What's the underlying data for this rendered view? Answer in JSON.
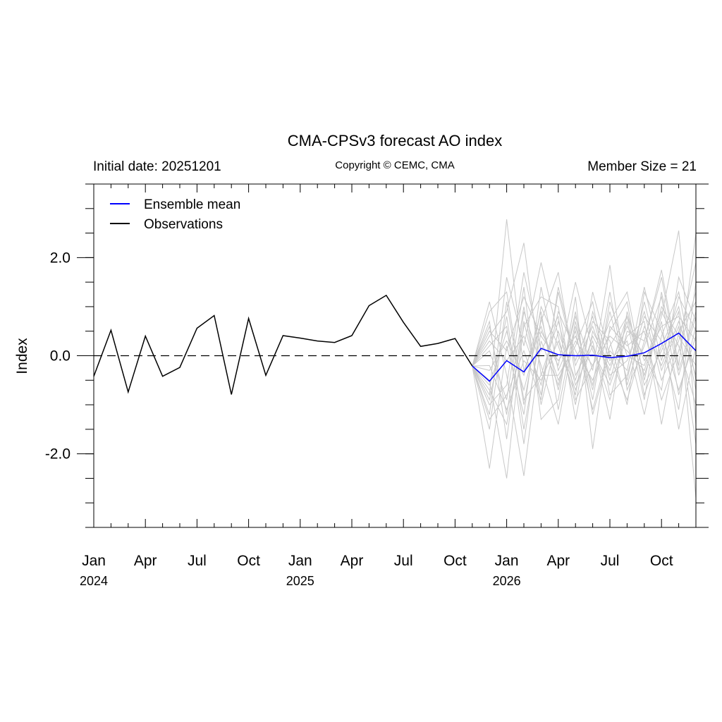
{
  "chart_data": {
    "type": "line",
    "title": "CMA-CPSv3 forecast AO index",
    "subtitle_left": "Initial date: 20251201",
    "subtitle_center": "Copyright © CEMC, CMA",
    "subtitle_right": "Member Size = 21",
    "ylabel": "Index",
    "ylim": [
      -3.5,
      3.5
    ],
    "yticks": [
      -2.0,
      0.0,
      2.0
    ],
    "ytick_labels": [
      "-2.0",
      "0.0",
      "2.0"
    ],
    "xticks": [
      {
        "month": 0,
        "label": "Jan",
        "year": "2024"
      },
      {
        "month": 3,
        "label": "Apr",
        "year": ""
      },
      {
        "month": 6,
        "label": "Jul",
        "year": ""
      },
      {
        "month": 9,
        "label": "Oct",
        "year": ""
      },
      {
        "month": 12,
        "label": "Jan",
        "year": "2025"
      },
      {
        "month": 15,
        "label": "Apr",
        "year": ""
      },
      {
        "month": 18,
        "label": "Jul",
        "year": ""
      },
      {
        "month": 21,
        "label": "Oct",
        "year": ""
      },
      {
        "month": 24,
        "label": "Jan",
        "year": "2026"
      },
      {
        "month": 27,
        "label": "Apr",
        "year": ""
      },
      {
        "month": 30,
        "label": "Jul",
        "year": ""
      },
      {
        "month": 33,
        "label": "Oct",
        "year": ""
      }
    ],
    "x_start": "2024-01",
    "x_end": "2026-12",
    "zero_line": true,
    "legend": {
      "position": "top-left",
      "entries": [
        {
          "name": "Ensemble mean",
          "color": "#0000ff"
        },
        {
          "name": "Observations",
          "color": "#000000"
        }
      ]
    },
    "series": [
      {
        "name": "Observations",
        "color": "#000000",
        "x": [
          "2024-01",
          "2024-02",
          "2024-03",
          "2024-04",
          "2024-05",
          "2024-06",
          "2024-07",
          "2024-08",
          "2024-09",
          "2024-10",
          "2024-11",
          "2024-12",
          "2025-01",
          "2025-02",
          "2025-03",
          "2025-04",
          "2025-05",
          "2025-06",
          "2025-07",
          "2025-08",
          "2025-09",
          "2025-10",
          "2025-11"
        ],
        "values": [
          -0.42,
          0.52,
          -0.74,
          0.4,
          -0.42,
          -0.24,
          0.56,
          0.82,
          -0.79,
          0.76,
          -0.4,
          0.41,
          0.36,
          0.3,
          0.27,
          0.41,
          1.02,
          1.23,
          0.68,
          0.19,
          0.25,
          0.35,
          -0.21
        ]
      },
      {
        "name": "Ensemble mean",
        "color": "#0000ff",
        "x": [
          "2025-11",
          "2025-12",
          "2026-01",
          "2026-02",
          "2026-03",
          "2026-04",
          "2026-05",
          "2026-06",
          "2026-07",
          "2026-08",
          "2026-09",
          "2026-10",
          "2026-11",
          "2026-12"
        ],
        "values": [
          -0.21,
          -0.52,
          -0.1,
          -0.33,
          0.15,
          0.02,
          0.0,
          0.01,
          -0.04,
          -0.01,
          0.06,
          0.25,
          0.46,
          0.1
        ]
      }
    ],
    "members": {
      "color": "#c8c8c8",
      "x": [
        "2025-11",
        "2025-12",
        "2026-01",
        "2026-02",
        "2026-03",
        "2026-04",
        "2026-05",
        "2026-06",
        "2026-07",
        "2026-08",
        "2026-09",
        "2026-10",
        "2026-11",
        "2026-12"
      ],
      "values": [
        [
          -0.21,
          -0.8,
          2.78,
          -0.3,
          0.6,
          -0.5,
          0.3,
          -0.2,
          0.4,
          0.1,
          -0.3,
          0.8,
          2.55,
          -1.4
        ],
        [
          -0.21,
          0.4,
          0.9,
          2.3,
          -0.4,
          0.7,
          -0.6,
          0.2,
          -0.9,
          0.5,
          0.3,
          1.75,
          -0.2,
          2.5
        ],
        [
          -0.21,
          -2.3,
          0.2,
          -1.2,
          1.4,
          -0.3,
          0.5,
          -1.1,
          0.2,
          0.8,
          -0.6,
          0.1,
          0.9,
          -2.9
        ],
        [
          -0.21,
          -0.5,
          -2.5,
          0.7,
          -0.8,
          1.3,
          -0.2,
          0.6,
          -0.4,
          -0.1,
          0.9,
          -0.5,
          0.3,
          1.9
        ],
        [
          -0.21,
          1.1,
          -0.4,
          -2.45,
          0.3,
          -0.6,
          0.8,
          -0.3,
          1.85,
          -0.7,
          0.2,
          1.2,
          -0.8,
          0.6
        ],
        [
          -0.21,
          -1.2,
          1.6,
          0.2,
          1.9,
          0.4,
          -1.0,
          0.9,
          -0.1,
          0.3,
          -1.2,
          0.4,
          1.3,
          -0.5
        ],
        [
          -0.21,
          0.1,
          -0.9,
          1.4,
          -1.3,
          -0.9,
          1.2,
          -1.9,
          0.6,
          0.2,
          0.5,
          -0.9,
          0.1,
          1.3
        ],
        [
          -0.21,
          -0.6,
          0.5,
          -0.7,
          0.7,
          1.7,
          -0.4,
          0.3,
          -1.3,
          0.9,
          -0.4,
          0.7,
          -1.5,
          0.2
        ],
        [
          -0.21,
          0.7,
          -1.7,
          0.9,
          -0.2,
          -1.4,
          0.6,
          -0.7,
          0.9,
          -0.5,
          1.1,
          -0.3,
          0.6,
          -1.8
        ],
        [
          -0.21,
          -1.5,
          1.1,
          -1.0,
          1.0,
          0.2,
          -0.8,
          1.3,
          0.0,
          -0.9,
          0.3,
          1.6,
          -0.3,
          0.9
        ],
        [
          -0.21,
          0.3,
          -0.1,
          0.4,
          -0.6,
          0.9,
          0.1,
          -0.5,
          0.5,
          1.1,
          -0.8,
          0.2,
          1.0,
          -0.7
        ],
        [
          -0.21,
          -0.9,
          0.8,
          -1.5,
          0.5,
          -0.2,
          1.5,
          0.1,
          -0.6,
          0.4,
          0.7,
          -1.4,
          0.5,
          1.1
        ],
        [
          -0.21,
          0.6,
          -1.2,
          1.0,
          -1.0,
          0.5,
          -0.5,
          0.7,
          0.3,
          -1.0,
          1.3,
          0.5,
          -0.7,
          0.4
        ],
        [
          -0.21,
          -0.3,
          0.3,
          -0.4,
          0.9,
          -1.1,
          0.7,
          -0.9,
          1.1,
          0.0,
          -0.2,
          0.9,
          0.2,
          -1.0
        ],
        [
          -0.21,
          -1.0,
          -0.6,
          1.7,
          0.1,
          0.8,
          -1.3,
          0.5,
          -0.2,
          0.6,
          0.0,
          -0.7,
          1.6,
          0.7
        ],
        [
          -0.21,
          0.9,
          1.3,
          -0.9,
          -0.4,
          -0.4,
          0.2,
          1.1,
          -0.8,
          -0.4,
          0.8,
          0.3,
          -1.1,
          1.5
        ],
        [
          -0.21,
          -0.7,
          -1.4,
          0.6,
          1.2,
          1.0,
          -0.9,
          -0.2,
          0.7,
          1.3,
          -0.5,
          1.0,
          0.4,
          -0.2
        ],
        [
          -0.21,
          0.2,
          0.6,
          -1.8,
          0.8,
          -0.7,
          0.9,
          -1.2,
          0.1,
          -0.3,
          1.4,
          -0.1,
          1.2,
          0.5
        ],
        [
          -0.21,
          -1.3,
          -0.8,
          0.1,
          -0.9,
          1.4,
          -0.1,
          0.8,
          -0.5,
          0.7,
          -0.9,
          1.3,
          -0.4,
          0.8
        ],
        [
          -0.21,
          0.5,
          0.1,
          1.2,
          0.4,
          -0.1,
          0.4,
          -0.6,
          1.3,
          -0.6,
          0.6,
          -0.2,
          0.7,
          -0.4
        ],
        [
          -0.21,
          -0.2,
          -1.1,
          -0.1,
          -0.5,
          0.3,
          -0.7,
          0.4,
          -0.3,
          0.8,
          -0.1,
          0.6,
          0.8,
          0.3
        ]
      ]
    }
  }
}
